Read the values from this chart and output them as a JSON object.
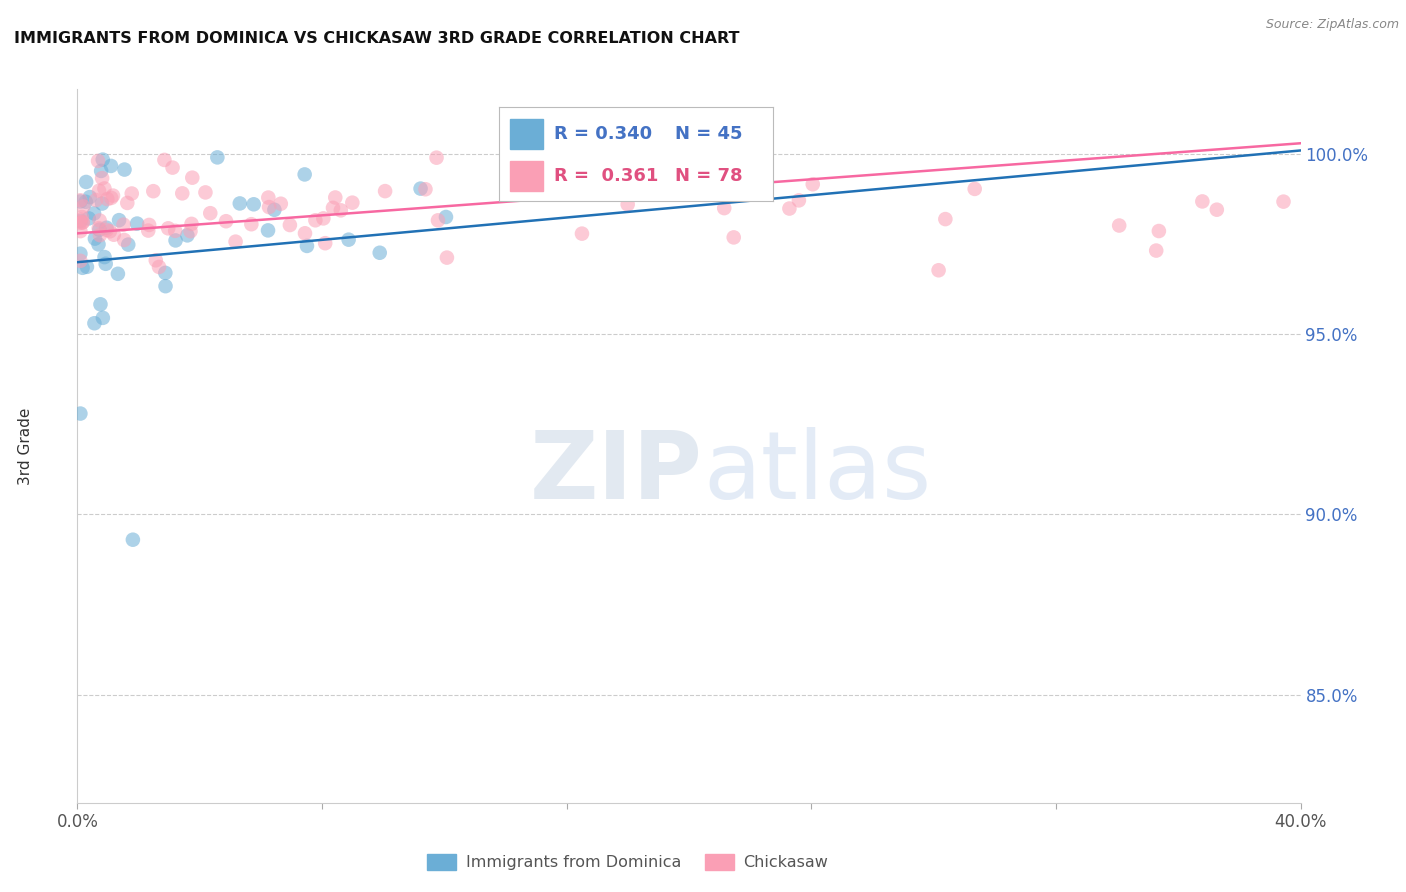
{
  "title": "IMMIGRANTS FROM DOMINICA VS CHICKASAW 3RD GRADE CORRELATION CHART",
  "source": "Source: ZipAtlas.com",
  "ylabel": "3rd Grade",
  "ytick_labels": [
    "85.0%",
    "90.0%",
    "95.0%",
    "100.0%"
  ],
  "ytick_values": [
    0.85,
    0.9,
    0.95,
    1.0
  ],
  "xmin": 0.0,
  "xmax": 0.4,
  "ymin": 0.82,
  "ymax": 1.018,
  "legend_blue_label": "Immigrants from Dominica",
  "legend_pink_label": "Chickasaw",
  "R_blue": 0.34,
  "N_blue": 45,
  "R_pink": 0.361,
  "N_pink": 78,
  "blue_color": "#6baed6",
  "pink_color": "#fa9fb5",
  "blue_line_color": "#2171b5",
  "pink_line_color": "#f768a1",
  "watermark_zip_color": "#c8d8e8",
  "watermark_atlas_color": "#b8cfe8"
}
